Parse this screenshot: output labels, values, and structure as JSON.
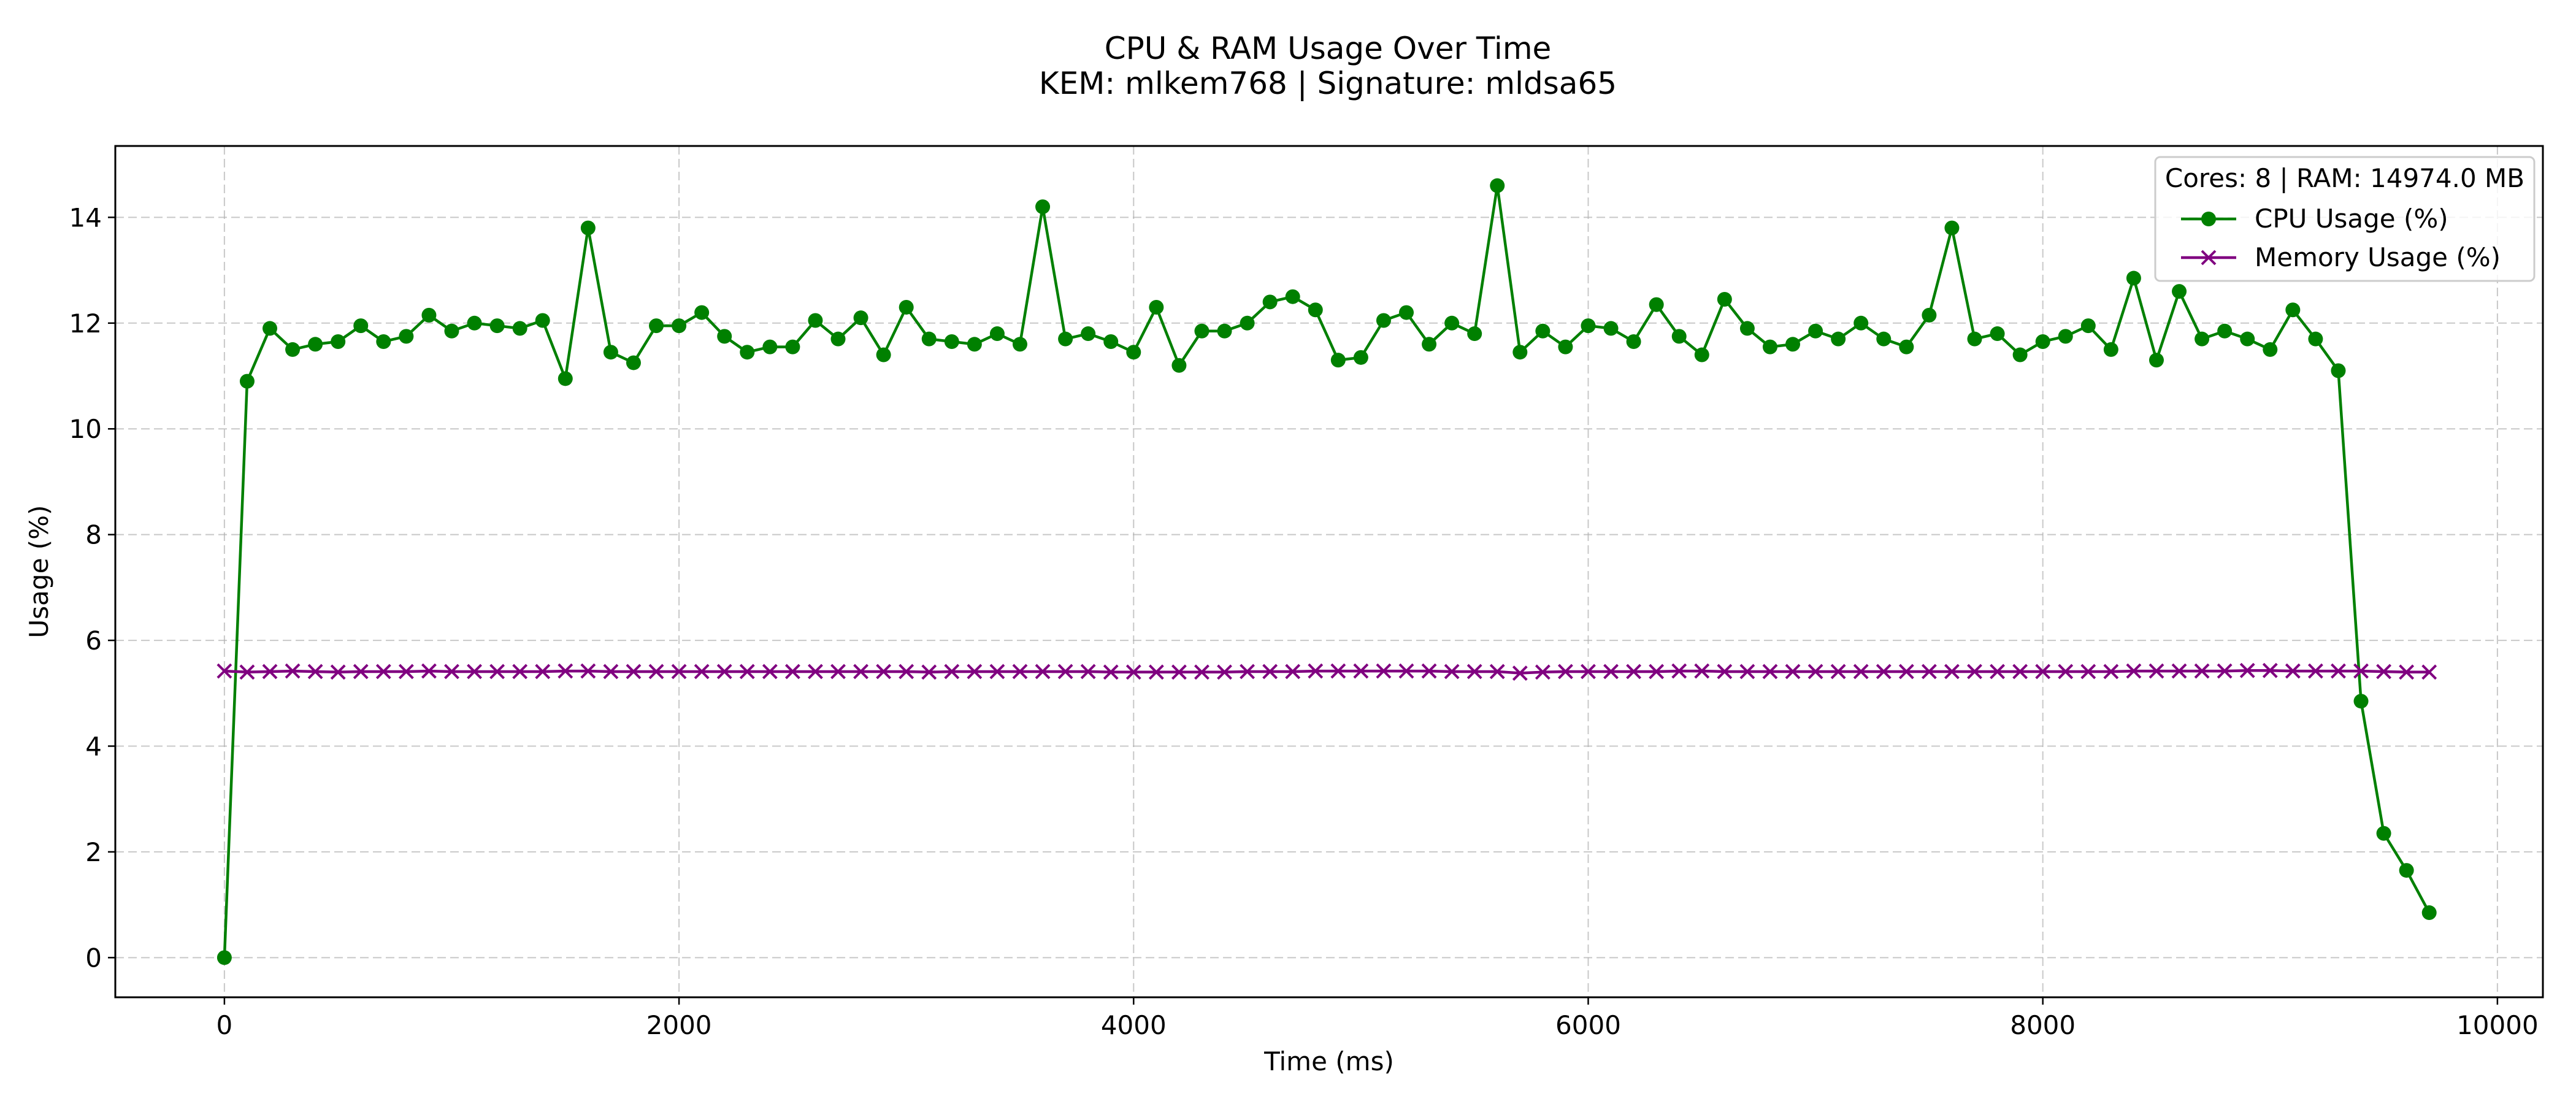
{
  "chart_data": {
    "type": "line",
    "title": "CPU & RAM Usage Over Time",
    "subtitle": "KEM: mlkem768 | Signature: mldsa65",
    "xlabel": "Time (ms)",
    "ylabel": "Usage (%)",
    "xlim": [
      -480,
      10200
    ],
    "ylim": [
      -0.75,
      15.35
    ],
    "xticks": [
      0,
      2000,
      4000,
      6000,
      8000,
      10000
    ],
    "yticks": [
      0,
      2,
      4,
      6,
      8,
      10,
      12,
      14
    ],
    "grid": true,
    "legend_title": "Cores: 8 | RAM: 14974.0 MB",
    "legend_position": "top-right",
    "x_start": 0,
    "x_step": 100,
    "series": [
      {
        "name": "CPU Usage (%)",
        "color": "#008000",
        "marker": "circle",
        "values": [
          0.0,
          10.9,
          11.9,
          11.5,
          11.6,
          11.65,
          11.95,
          11.65,
          11.75,
          12.15,
          11.85,
          12.0,
          11.95,
          11.9,
          12.05,
          10.95,
          13.8,
          11.45,
          11.25,
          11.95,
          11.95,
          12.2,
          11.75,
          11.45,
          11.55,
          11.55,
          12.05,
          11.7,
          12.1,
          11.4,
          12.3,
          11.7,
          11.65,
          11.6,
          11.8,
          11.6,
          14.2,
          11.7,
          11.8,
          11.65,
          11.45,
          12.3,
          11.2,
          11.85,
          11.85,
          12.0,
          12.4,
          12.5,
          12.25,
          11.3,
          11.35,
          12.05,
          12.2,
          11.6,
          12.0,
          11.8,
          14.6,
          11.45,
          11.85,
          11.55,
          11.95,
          11.9,
          11.65,
          12.35,
          11.75,
          11.4,
          12.45,
          11.9,
          11.55,
          11.6,
          11.85,
          11.7,
          12.0,
          11.7,
          11.55,
          12.15,
          13.8,
          11.7,
          11.8,
          11.4,
          11.65,
          11.75,
          11.95,
          11.5,
          12.85,
          11.3,
          12.6,
          11.7,
          11.85,
          11.7,
          11.5,
          12.25,
          11.7,
          11.1,
          4.85,
          2.35,
          1.65,
          0.85
        ]
      },
      {
        "name": "Memory Usage (%)",
        "color": "#800080",
        "marker": "x",
        "values": [
          5.42,
          5.4,
          5.41,
          5.42,
          5.41,
          5.4,
          5.41,
          5.41,
          5.41,
          5.42,
          5.41,
          5.41,
          5.41,
          5.41,
          5.41,
          5.42,
          5.42,
          5.41,
          5.41,
          5.41,
          5.41,
          5.41,
          5.41,
          5.41,
          5.41,
          5.41,
          5.41,
          5.41,
          5.41,
          5.41,
          5.41,
          5.4,
          5.41,
          5.41,
          5.41,
          5.41,
          5.41,
          5.41,
          5.41,
          5.4,
          5.4,
          5.4,
          5.4,
          5.4,
          5.4,
          5.41,
          5.41,
          5.41,
          5.42,
          5.42,
          5.42,
          5.42,
          5.42,
          5.42,
          5.41,
          5.41,
          5.41,
          5.38,
          5.4,
          5.41,
          5.41,
          5.41,
          5.41,
          5.41,
          5.42,
          5.42,
          5.41,
          5.41,
          5.41,
          5.41,
          5.41,
          5.41,
          5.41,
          5.41,
          5.41,
          5.41,
          5.41,
          5.41,
          5.41,
          5.41,
          5.41,
          5.41,
          5.41,
          5.41,
          5.42,
          5.42,
          5.42,
          5.42,
          5.42,
          5.43,
          5.43,
          5.42,
          5.42,
          5.42,
          5.42,
          5.41,
          5.4,
          5.4
        ]
      }
    ]
  }
}
